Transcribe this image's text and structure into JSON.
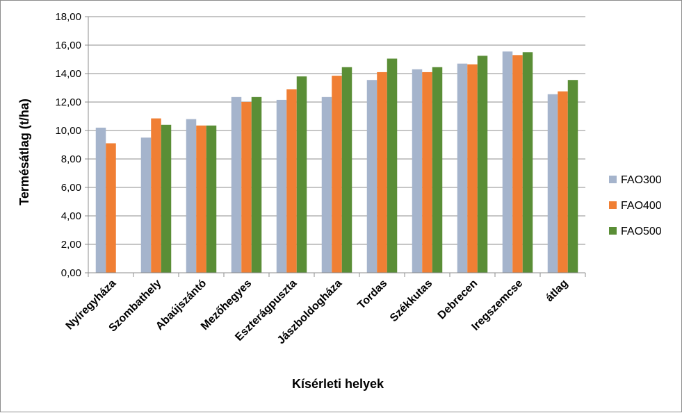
{
  "chart_data": {
    "type": "bar",
    "title": "",
    "xlabel": "Kísérleti helyek",
    "ylabel": "Termésátlag (t/ha)",
    "ylim": [
      0,
      18
    ],
    "ytick_step": 2,
    "ytick_labels": [
      "0,00",
      "2,00",
      "4,00",
      "6,00",
      "8,00",
      "10,00",
      "12,00",
      "14,00",
      "16,00",
      "18,00"
    ],
    "grid": true,
    "legend_position": "right",
    "categories": [
      "Nyíregyháza",
      "Szombathely",
      "Abaújszántó",
      "Mezőhegyes",
      "Eszterágpuszta",
      "Jászboldogháza",
      "Tordas",
      "Székkutas",
      "Debrecen",
      "Iregszemcse",
      "átlag"
    ],
    "series": [
      {
        "name": "FAO300",
        "color": "#A5B4CC",
        "values": [
          10.2,
          9.5,
          10.8,
          12.35,
          12.15,
          12.35,
          13.55,
          14.3,
          14.7,
          15.55,
          12.55
        ]
      },
      {
        "name": "FAO400",
        "color": "#F07F34",
        "values": [
          9.1,
          10.85,
          10.35,
          12.0,
          12.9,
          13.85,
          14.1,
          14.1,
          14.65,
          15.3,
          12.75
        ]
      },
      {
        "name": "FAO500",
        "color": "#5A8E36",
        "values": [
          null,
          10.4,
          10.35,
          12.35,
          13.8,
          14.45,
          15.05,
          14.45,
          15.25,
          15.5,
          13.55
        ]
      }
    ]
  }
}
